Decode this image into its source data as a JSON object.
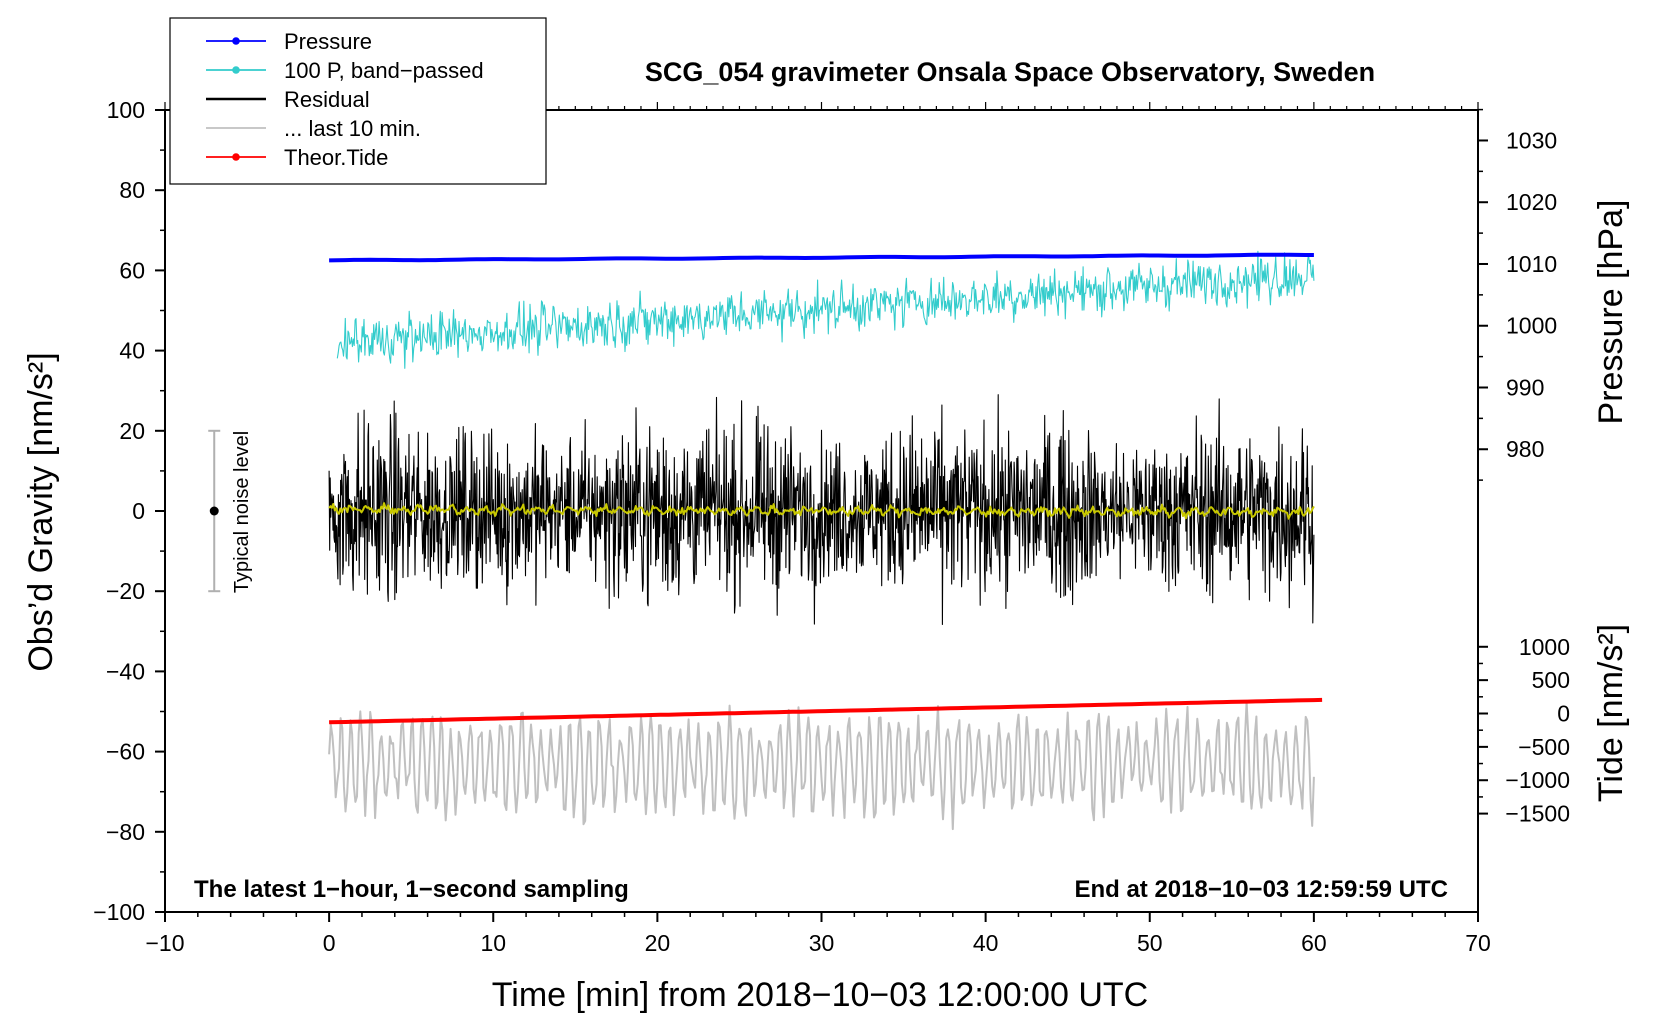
{
  "chart_data": {
    "type": "line",
    "title": "SCG_054 gravimeter Onsala Space Observatory, Sweden",
    "xlabel": "Time [min] from 2018−10−03 12:00:00 UTC",
    "ylabel_left": "Obs’d Gravity [nm/s²]",
    "ylabel_right_pressure": "Pressure [hPa]",
    "ylabel_right_tide": "Tide [nm/s²]",
    "xlim": [
      -10,
      70
    ],
    "ylim": [
      -100,
      100
    ],
    "x_ticks": [
      "−10",
      "0",
      "10",
      "20",
      "30",
      "40",
      "50",
      "60",
      "70"
    ],
    "x_tick_values": [
      -10,
      0,
      10,
      20,
      30,
      40,
      50,
      60,
      70
    ],
    "y_ticks": [
      "−100",
      "−80",
      "−60",
      "−40",
      "−20",
      "0",
      "20",
      "40",
      "60",
      "80",
      "100"
    ],
    "y_tick_values": [
      -100,
      -80,
      -60,
      -40,
      -20,
      0,
      20,
      40,
      60,
      80,
      100
    ],
    "pressure_axis": {
      "ticks": [
        "980",
        "990",
        "1000",
        "1010",
        "1020",
        "1030"
      ],
      "tick_values": [
        980,
        990,
        1000,
        1010,
        1020,
        1030
      ],
      "gravity_at_1000hPa": 46.2,
      "gravity_per_hPa": 1.54
    },
    "tide_axis": {
      "ticks": [
        "1000",
        "500",
        "0",
        "−500",
        "−1000",
        "−1500"
      ],
      "tick_values": [
        1000,
        500,
        0,
        -500,
        -1000,
        -1500
      ],
      "gravity_at_0": -50.5,
      "gravity_per_unit": 0.01664
    },
    "notes": {
      "bottom_left": "The latest 1−hour, 1−second sampling",
      "bottom_right": "End at 2018−10−03 12:59:59 UTC"
    },
    "noise_bar": {
      "label": "Typical noise level",
      "x": -7,
      "center": 0,
      "low": -20,
      "high": 20
    },
    "legend": [
      {
        "label": "Pressure",
        "color": "#0000ff",
        "marker": true
      },
      {
        "label": "100 P, band−passed",
        "color": "#33cccc",
        "marker": true
      },
      {
        "label": "Residual",
        "color": "#000000",
        "marker": false
      },
      {
        "label": "... last 10 min.",
        "color": "#c0c0c0",
        "marker": false
      },
      {
        "label": "Theor.Tide",
        "color": "#ff0000",
        "marker": true
      }
    ],
    "series": [
      {
        "name": "Pressure",
        "color": "#0000ff",
        "x_range": [
          0,
          60
        ],
        "start": 62.5,
        "end": 63.9,
        "kind": "smooth"
      },
      {
        "name": "100 P, band−passed",
        "color": "#33cccc",
        "x_range": [
          0.5,
          60
        ],
        "start": 42,
        "end": 59,
        "amplitude": 6,
        "kind": "noisy"
      },
      {
        "name": "Residual",
        "color": "#000000",
        "x_range": [
          0,
          60
        ],
        "center": 0,
        "amplitude": 16,
        "min": -30,
        "max": 29,
        "kind": "noisy"
      },
      {
        "name": "Residual smoothed",
        "color": "#c8c800",
        "x_range": [
          0,
          60
        ],
        "center": 0.4,
        "amplitude": 1.2,
        "kind": "smooth-noisy"
      },
      {
        "name": "... last 10 min.",
        "color": "#c0c0c0",
        "x_range": [
          0,
          60
        ],
        "center": -63,
        "amplitude": 12,
        "min": -81,
        "max": -40,
        "kind": "oscillating"
      },
      {
        "name": "Theor.Tide",
        "color": "#ff0000",
        "x_range": [
          0,
          60.5
        ],
        "start": -52.7,
        "end": -47.1,
        "kind": "smooth"
      }
    ]
  },
  "colors": {
    "pressure": "#0000ff",
    "band_passed": "#33cccc",
    "residual": "#000000",
    "residual_smooth": "#c8c800",
    "last10": "#c0c0c0",
    "tide": "#ff0000"
  }
}
